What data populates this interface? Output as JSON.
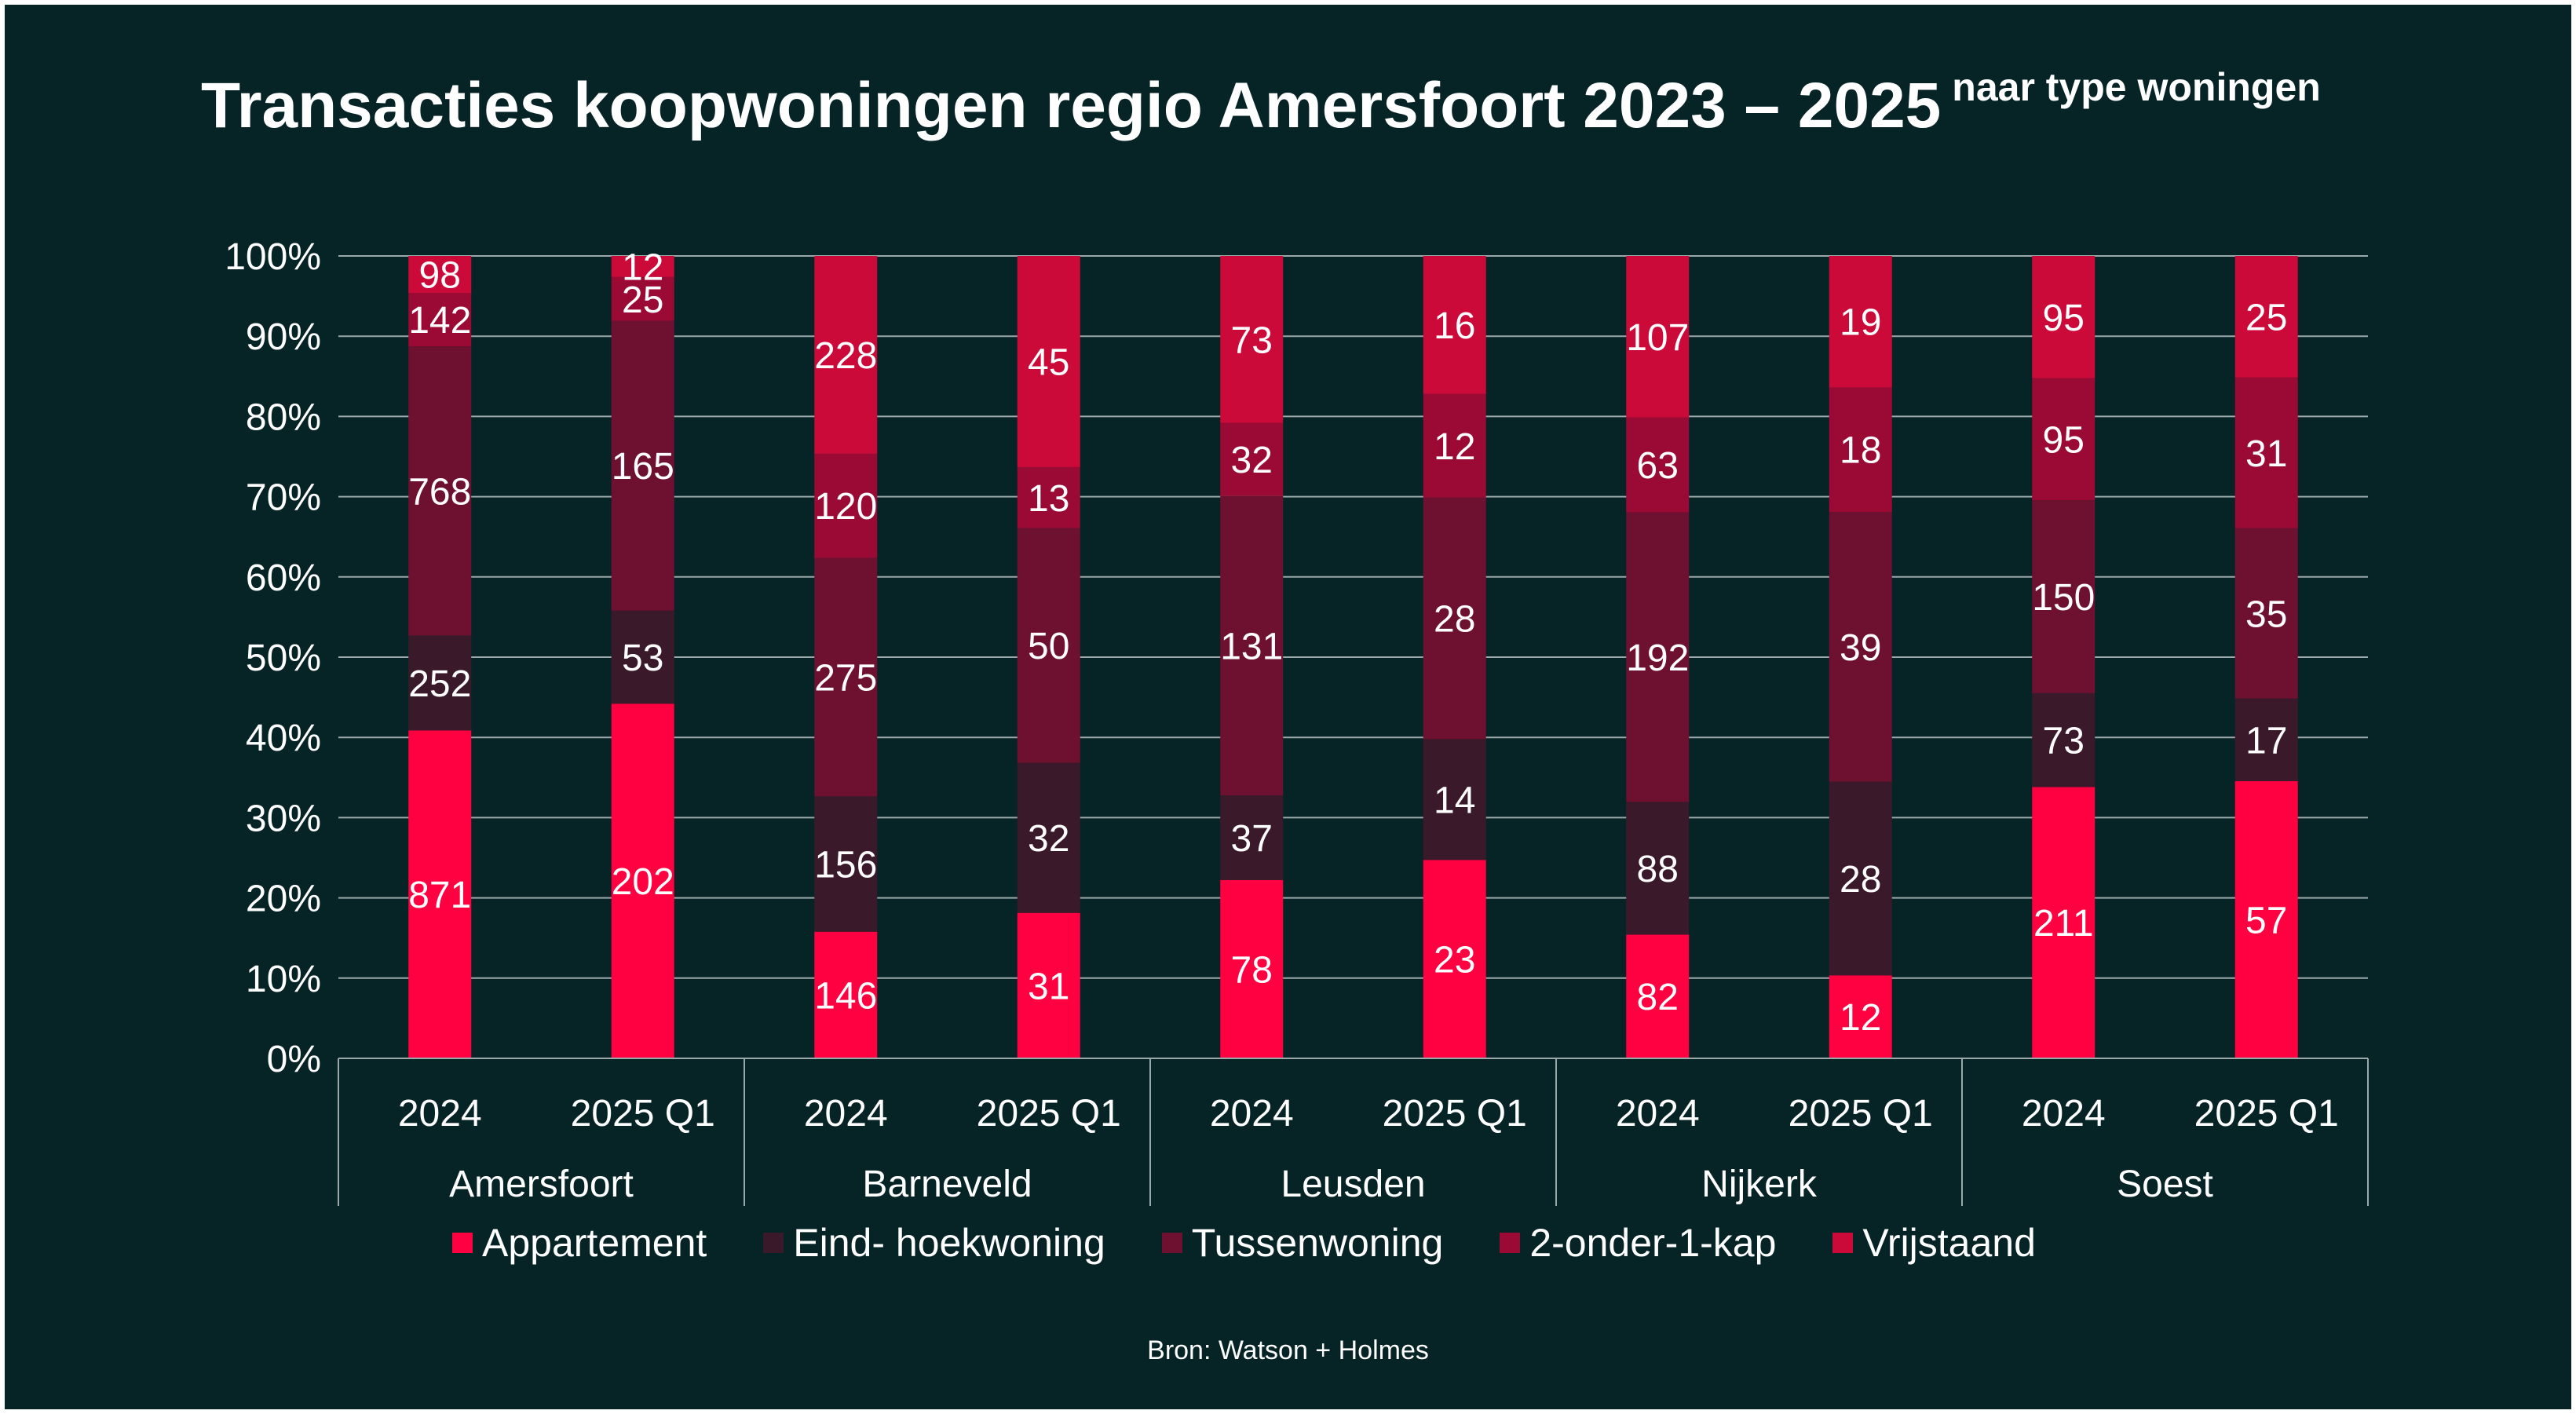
{
  "title": "Transacties koopwoningen regio Amersfoort 2023 – 2025",
  "subtitle": "naar type woningen",
  "source": "Bron: Watson + Holmes",
  "chart_data": {
    "type": "bar",
    "stacked": "percent",
    "ylim": [
      0,
      100
    ],
    "yticks": [
      "0%",
      "10%",
      "20%",
      "30%",
      "40%",
      "50%",
      "60%",
      "70%",
      "80%",
      "90%",
      "100%"
    ],
    "grid": true,
    "legend_position": "bottom",
    "groups": [
      {
        "name": "Amersfoort",
        "categories": [
          "2024",
          "2025 Q1"
        ]
      },
      {
        "name": "Barneveld",
        "categories": [
          "2024",
          "2025 Q1"
        ]
      },
      {
        "name": "Leusden",
        "categories": [
          "2024",
          "2025 Q1"
        ]
      },
      {
        "name": "Nijkerk",
        "categories": [
          "2024",
          "2025 Q1"
        ]
      },
      {
        "name": "Soest",
        "categories": [
          "2024",
          "2025 Q1"
        ]
      }
    ],
    "series": [
      {
        "name": "Appartement",
        "color": "#ff0040",
        "values": [
          871,
          202,
          146,
          31,
          78,
          23,
          82,
          12,
          211,
          57
        ]
      },
      {
        "name": "Eind- hoekwoning",
        "color": "#3a1a2a",
        "values": [
          252,
          53,
          156,
          32,
          37,
          14,
          88,
          28,
          73,
          17
        ]
      },
      {
        "name": "Tussenwoning",
        "color": "#6e1030",
        "values": [
          768,
          165,
          275,
          50,
          131,
          28,
          192,
          39,
          150,
          35
        ]
      },
      {
        "name": "2-onder-1-kap",
        "color": "#9a0a35",
        "values": [
          142,
          25,
          120,
          13,
          32,
          12,
          63,
          18,
          95,
          31
        ]
      },
      {
        "name": "Vrijstaand",
        "color": "#cc0a3a",
        "values": [
          98,
          12,
          228,
          45,
          73,
          16,
          107,
          19,
          95,
          25
        ]
      }
    ]
  }
}
